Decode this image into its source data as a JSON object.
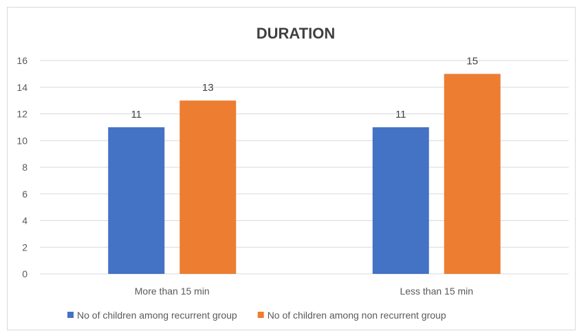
{
  "chart_data": {
    "type": "bar",
    "title": "DURATION",
    "categories": [
      "More than 15 min",
      "Less than 15 min"
    ],
    "series": [
      {
        "name": "No of children among recurrent group",
        "values": [
          11,
          11
        ],
        "color": "#4472C4"
      },
      {
        "name": "No of children among non recurrent group",
        "values": [
          13,
          15
        ],
        "color": "#ED7D31"
      }
    ],
    "ylim": [
      0,
      16
    ],
    "yticks": [
      0,
      2,
      4,
      6,
      8,
      10,
      12,
      14,
      16
    ],
    "grid": true,
    "legend_position": "bottom",
    "data_labels": true,
    "gridline_color": "#d9d9d9"
  }
}
